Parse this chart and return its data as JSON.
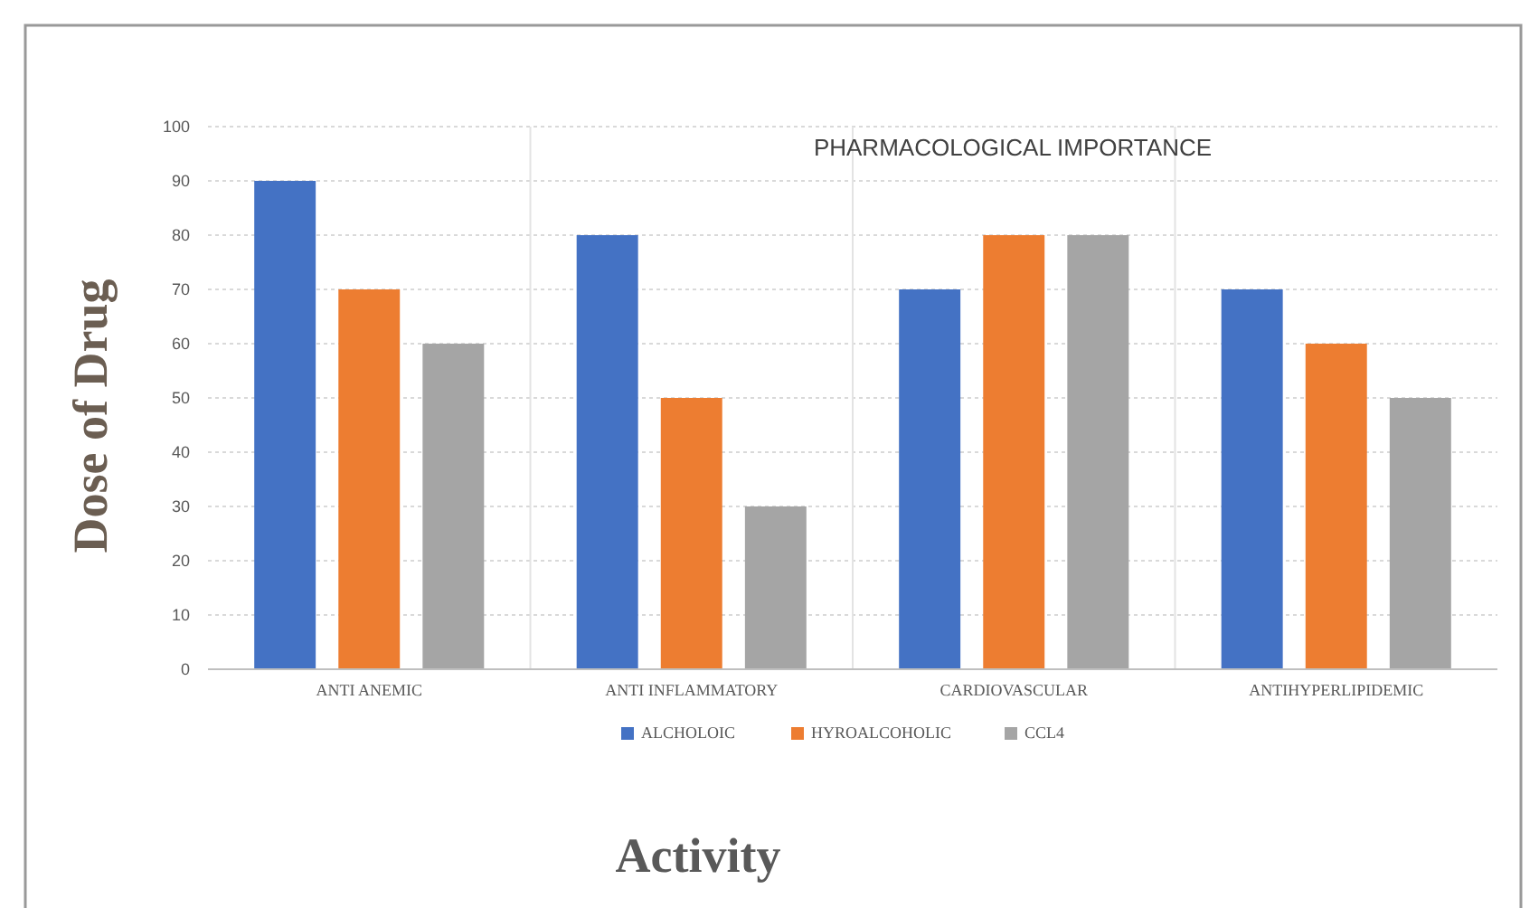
{
  "chart_data": {
    "type": "bar",
    "title": "PHARMACOLOGICAL IMPORTANCE",
    "xlabel": "Activity",
    "ylabel": "Dose of Drug",
    "categories": [
      "ANTI ANEMIC",
      "ANTI INFLAMMATORY",
      "CARDIOVASCULAR",
      "ANTIHYPERLIPIDEMIC"
    ],
    "series": [
      {
        "name": "ALCHOLOIC",
        "color": "#4472c4",
        "values": [
          90,
          80,
          70,
          70
        ]
      },
      {
        "name": "HYROALCOHOLIC",
        "color": "#ed7d31",
        "values": [
          70,
          50,
          80,
          60
        ]
      },
      {
        "name": "CCL4",
        "color": "#a5a5a5",
        "values": [
          60,
          30,
          80,
          50
        ]
      }
    ],
    "ylim": [
      0,
      100
    ],
    "yticks": [
      0,
      10,
      20,
      30,
      40,
      50,
      60,
      70,
      80,
      90,
      100
    ],
    "grid": true,
    "legend": "bottom"
  }
}
